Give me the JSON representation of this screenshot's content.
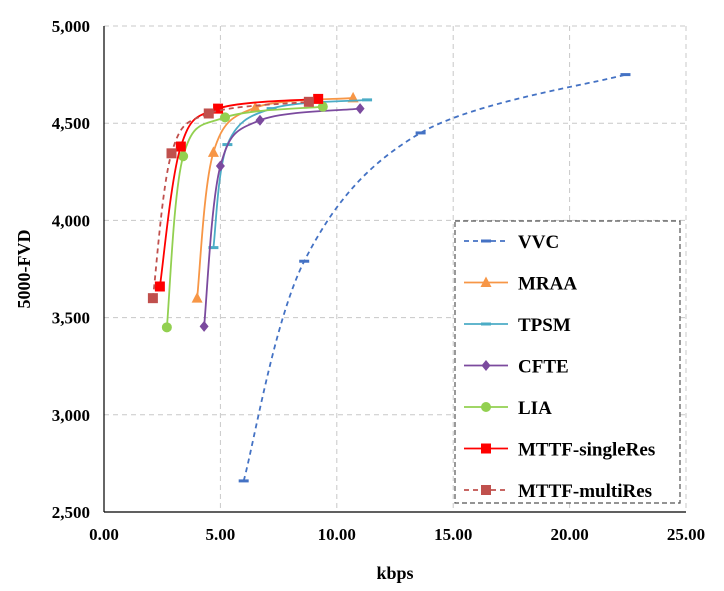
{
  "chart_data": {
    "type": "line",
    "xlabel": "kbps",
    "ylabel": "5000-FVD",
    "xlim": [
      0,
      25
    ],
    "ylim": [
      2500,
      5000
    ],
    "x_ticks": [
      0,
      5,
      10,
      15,
      20,
      25
    ],
    "x_tick_labels": [
      "0.00",
      "5.00",
      "10.00",
      "15.00",
      "20.00",
      "25.00"
    ],
    "y_ticks": [
      2500,
      3000,
      3500,
      4000,
      4500,
      5000
    ],
    "y_tick_labels": [
      "2,500",
      "3,000",
      "3,500",
      "4,000",
      "4,500",
      "5,000"
    ],
    "grid": true,
    "legend_position": "bottom-right",
    "series": [
      {
        "name": "VVC",
        "color": "#4472C4",
        "marker": "dash",
        "dashed": true,
        "points": [
          [
            6.0,
            2660
          ],
          [
            8.6,
            3790
          ],
          [
            13.6,
            4450
          ],
          [
            22.4,
            4750
          ]
        ]
      },
      {
        "name": "MRAA",
        "color": "#F79646",
        "marker": "triangle",
        "dashed": false,
        "points": [
          [
            4.0,
            3600
          ],
          [
            4.7,
            4350
          ],
          [
            6.5,
            4580
          ],
          [
            10.7,
            4630
          ]
        ]
      },
      {
        "name": "TPSM",
        "color": "#4BACC6",
        "marker": "dash",
        "dashed": false,
        "points": [
          [
            4.7,
            3860
          ],
          [
            5.3,
            4390
          ],
          [
            7.2,
            4575
          ],
          [
            11.3,
            4620
          ]
        ]
      },
      {
        "name": "CFTE",
        "color": "#7B4A9E",
        "marker": "diamond",
        "dashed": false,
        "points": [
          [
            4.3,
            3455
          ],
          [
            5.0,
            4280
          ],
          [
            6.7,
            4515
          ],
          [
            11.0,
            4575
          ]
        ]
      },
      {
        "name": "LIA",
        "color": "#92D050",
        "marker": "circle",
        "dashed": false,
        "points": [
          [
            2.7,
            3450
          ],
          [
            3.4,
            4330
          ],
          [
            5.2,
            4530
          ],
          [
            9.4,
            4585
          ]
        ]
      },
      {
        "name": "MTTF-singleRes",
        "color": "#FF0000",
        "marker": "square",
        "dashed": false,
        "points": [
          [
            2.4,
            3660
          ],
          [
            3.3,
            4380
          ],
          [
            4.9,
            4575
          ],
          [
            9.2,
            4625
          ]
        ]
      },
      {
        "name": "MTTF-multiRes",
        "color": "#C0504D",
        "marker": "square",
        "dashed": true,
        "points": [
          [
            2.1,
            3600
          ],
          [
            2.9,
            4345
          ],
          [
            4.5,
            4550
          ],
          [
            8.8,
            4610
          ]
        ]
      }
    ]
  }
}
